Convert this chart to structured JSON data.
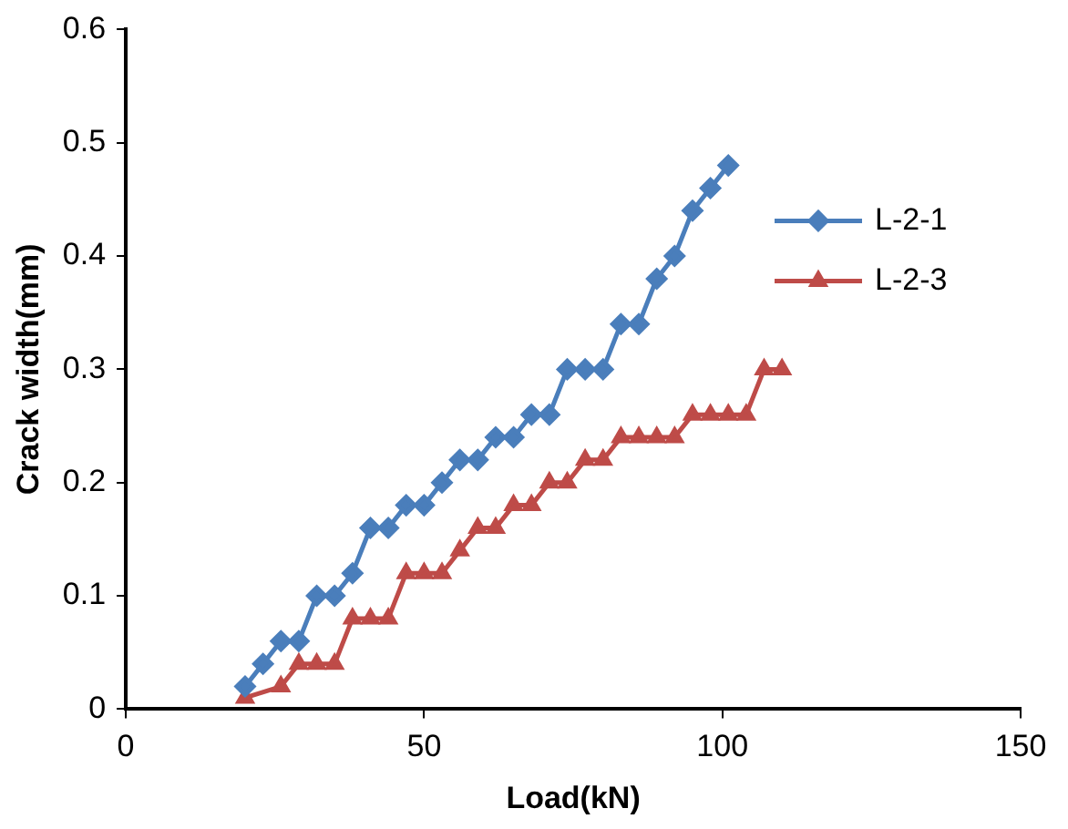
{
  "chart_data": {
    "type": "line",
    "xlabel": "Load(kN)",
    "ylabel": "Crack width(mm)",
    "xlim": [
      0,
      150
    ],
    "xticks": [
      0,
      50,
      100,
      150
    ],
    "ylim": [
      0,
      0.6
    ],
    "yticks": [
      0,
      0.1,
      0.2,
      0.3,
      0.4,
      0.5,
      0.6
    ],
    "grid": false,
    "legend": "top right",
    "line_style": "solid",
    "series": [
      {
        "name": "L-2-1",
        "color": "#4a7ebb",
        "marker": "diamond",
        "x": [
          20,
          23,
          26,
          29,
          32,
          35,
          38,
          41,
          44,
          47,
          50,
          53,
          56,
          59,
          62,
          65,
          68,
          71,
          74,
          77,
          80,
          83,
          86,
          89,
          92,
          95,
          98,
          101
        ],
        "values": [
          0.02,
          0.04,
          0.06,
          0.06,
          0.1,
          0.1,
          0.12,
          0.16,
          0.16,
          0.18,
          0.18,
          0.2,
          0.22,
          0.22,
          0.24,
          0.24,
          0.26,
          0.26,
          0.3,
          0.3,
          0.3,
          0.34,
          0.34,
          0.38,
          0.4,
          0.44,
          0.46,
          0.48
        ]
      },
      {
        "name": "L-2-3",
        "color": "#be4b48",
        "marker": "triangle",
        "x": [
          20,
          26,
          29,
          32,
          35,
          38,
          41,
          44,
          47,
          50,
          53,
          56,
          59,
          62,
          65,
          68,
          71,
          74,
          77,
          80,
          83,
          86,
          89,
          92,
          95,
          98,
          101,
          104,
          107,
          110
        ],
        "values": [
          0.01,
          0.02,
          0.04,
          0.04,
          0.04,
          0.08,
          0.08,
          0.08,
          0.12,
          0.12,
          0.12,
          0.14,
          0.16,
          0.16,
          0.18,
          0.18,
          0.2,
          0.2,
          0.22,
          0.22,
          0.24,
          0.24,
          0.24,
          0.24,
          0.26,
          0.26,
          0.26,
          0.26,
          0.3,
          0.3
        ]
      }
    ]
  }
}
